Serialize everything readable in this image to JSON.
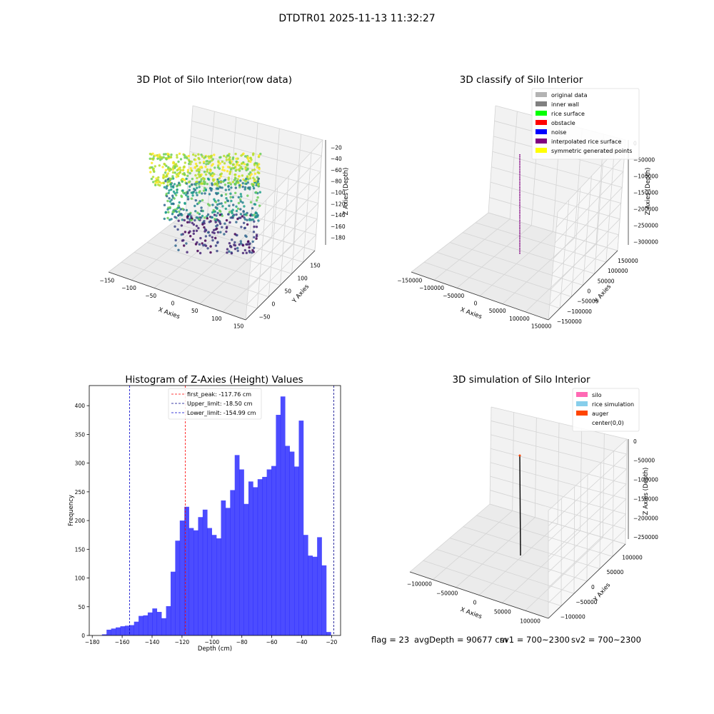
{
  "figure": {
    "title": "DTDTR01 2025-11-13 11:32:27"
  },
  "panels": {
    "raw": {
      "title": "3D Plot of Silo Interior(row data)",
      "xlabel": "X Axies",
      "ylabel": "Y Axies",
      "zlabel": "Z Axies (Depth)",
      "x_ticks": [
        "−150",
        "−100",
        "−50",
        "0",
        "50",
        "100",
        "150"
      ],
      "y_ticks": [
        "−50",
        "0",
        "50",
        "100",
        "150"
      ],
      "z_ticks": [
        "−20",
        "−40",
        "−60",
        "−80",
        "−100",
        "−120",
        "−140",
        "−160",
        "−180"
      ],
      "colormap": "viridis"
    },
    "classify": {
      "title": "3D classify of Silo Interior",
      "xlabel": "X Axies",
      "ylabel": "Y Axies",
      "zlabel": "Z Axies (Depth)",
      "x_ticks": [
        "−150000",
        "−100000",
        "−50000",
        "0",
        "50000",
        "100000",
        "150000"
      ],
      "y_ticks": [
        "−150000",
        "−100000",
        "−50000",
        "0",
        "50000",
        "100000",
        "150000"
      ],
      "z_ticks": [
        "0",
        "−50000",
        "−100000",
        "−150000",
        "−200000",
        "−250000",
        "−300000"
      ],
      "legend": [
        {
          "label": "original data",
          "color": "#b3b3b3"
        },
        {
          "label": "inner wall",
          "color": "#808080"
        },
        {
          "label": "rice surface",
          "color": "#00ff00"
        },
        {
          "label": "obstacle",
          "color": "#ff0000"
        },
        {
          "label": "noise",
          "color": "#0000ff"
        },
        {
          "label": "interpolated rice surface",
          "color": "#800080"
        },
        {
          "label": "symmetric generated points",
          "color": "#ffff00"
        }
      ]
    },
    "simulation": {
      "title": "3D simulation of Silo Interior",
      "xlabel": "X Axies",
      "ylabel": "Y Axies",
      "zlabel": "Z Axies (Depth)",
      "x_ticks": [
        "−100000",
        "−50000",
        "0",
        "50000",
        "100000"
      ],
      "y_ticks": [
        "−100000",
        "−50000",
        "0",
        "50000",
        "100000"
      ],
      "z_ticks": [
        "0",
        "−50000",
        "−100000",
        "−150000",
        "−200000",
        "−250000"
      ],
      "legend": [
        {
          "label": "silo",
          "color": "#ff69b4"
        },
        {
          "label": "rice simulation",
          "color": "#87ceeb"
        },
        {
          "label": "auger",
          "color": "#ff4500"
        },
        {
          "label": "center(0,0)",
          "color": "#ffffff"
        }
      ]
    }
  },
  "chart_data": [
    {
      "type": "bar",
      "title": "Histogram of Z-Axies (Height) Values",
      "xlabel": "Depth (cm)",
      "ylabel": "Frequency",
      "xlim": [
        -182,
        -14
      ],
      "ylim": [
        0,
        435
      ],
      "bar_color": "#0000ff",
      "bin_start": -173.5,
      "bin_width": 3.06,
      "values": [
        2,
        10,
        12,
        14,
        16,
        17,
        18,
        24,
        34,
        35,
        40,
        47,
        41,
        30,
        51,
        111,
        165,
        200,
        224,
        187,
        183,
        206,
        219,
        187,
        175,
        169,
        235,
        222,
        253,
        314,
        289,
        229,
        268,
        258,
        272,
        276,
        289,
        295,
        384,
        416,
        330,
        320,
        294,
        374,
        175,
        139,
        137,
        171,
        122,
        6
      ],
      "x_ticks": [
        "−180",
        "−160",
        "−140",
        "−120",
        "−100",
        "−80",
        "−60",
        "−40",
        "−20"
      ],
      "y_ticks": [
        "0",
        "50",
        "100",
        "150",
        "200",
        "250",
        "300",
        "350",
        "400"
      ],
      "vlines": [
        {
          "x": -117.76,
          "color": "#ff0000",
          "label": "first_peak: -117.76 cm"
        },
        {
          "x": -18.5,
          "color": "#00008b",
          "label": "Upper_limit: -18.50 cm"
        },
        {
          "x": -154.99,
          "color": "#0000cd",
          "label": "Lower_limit: -154.99 cm"
        }
      ],
      "grid": false,
      "legend_position": "top-center"
    }
  ],
  "status": {
    "flag": "flag = 23",
    "avg_depth": "avgDepth = 90677 cm",
    "sv1": "sv1 = 700~2300",
    "sv2": "sv2 = 700~2300"
  }
}
